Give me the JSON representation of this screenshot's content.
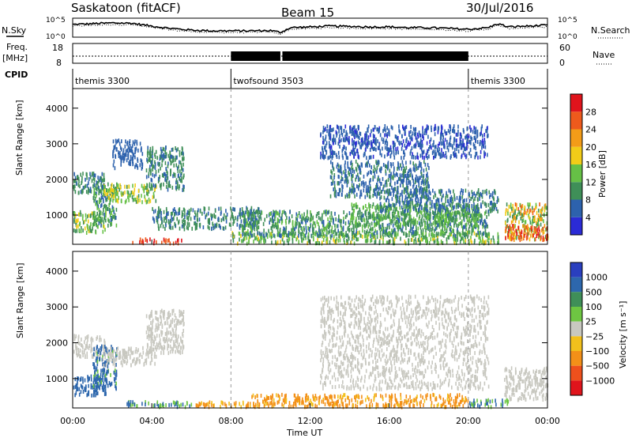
{
  "header": {
    "site": "Saskatoon (fitACF)",
    "beam": "Beam 15",
    "date": "30/Jul/2016"
  },
  "side_labels": {
    "nsky": "N.Sky",
    "freq_top": "Freq.",
    "freq_unit": "[MHz]",
    "cpid": "CPID",
    "nsearch": "N.Search",
    "nave": "Nave"
  },
  "top_scales": {
    "noise_left": [
      "10^5",
      "10^0"
    ],
    "noise_right": [
      "10^5",
      "10^0"
    ],
    "freq_left": [
      "18",
      "8"
    ],
    "nave_right": [
      "60",
      "0"
    ]
  },
  "cpid_segments": [
    {
      "start": 0,
      "end": 8.0,
      "label": "themis 3300"
    },
    {
      "start": 8.0,
      "end": 20.0,
      "label": "twofsound 3503"
    },
    {
      "start": 20.0,
      "end": 24.0,
      "label": "themis 3300"
    }
  ],
  "colors": {
    "power": [
      "#2b2bd6",
      "#2d62ad",
      "#3f8f58",
      "#66c046",
      "#f2cc18",
      "#f39c18",
      "#ee5a1c",
      "#e0141c"
    ],
    "velocity": [
      "#2a3fbf",
      "#2d67ad",
      "#3f8f58",
      "#6ec642",
      "#c8c8c0",
      "#f2c01c",
      "#f39018",
      "#ee501c",
      "#e0141c"
    ]
  },
  "chart_data": [
    {
      "type": "line",
      "name": "noise",
      "series": [
        {
          "name": "N.Sky"
        },
        {
          "name": "N.Search"
        }
      ],
      "x": [
        0,
        1,
        2,
        3,
        4,
        5,
        6,
        7,
        8,
        9,
        10,
        10.5,
        11,
        12,
        13,
        14,
        15,
        16,
        17,
        18,
        19,
        20,
        21,
        21.5,
        22,
        23,
        24
      ],
      "y": [
        0.7,
        0.75,
        0.8,
        0.78,
        0.6,
        0.45,
        0.35,
        0.3,
        0.3,
        0.3,
        0.32,
        0.2,
        0.5,
        0.55,
        0.6,
        0.58,
        0.55,
        0.55,
        0.5,
        0.5,
        0.45,
        0.4,
        0.5,
        0.75,
        0.55,
        0.6,
        0.65
      ]
    },
    {
      "type": "line",
      "name": "frequency-nave",
      "series": [
        {
          "name": "Freq."
        },
        {
          "name": "Nave"
        }
      ],
      "x": [
        0,
        8,
        8.01,
        10.5,
        20,
        20.01,
        24
      ],
      "freq": [
        10.5,
        10.5,
        10.5,
        10.5,
        10.5,
        10.5,
        10.5
      ],
      "nave_band": [
        [
          8.0,
          10.5
        ],
        [
          10.6,
          20.0
        ]
      ]
    },
    {
      "type": "heatmap",
      "name": "power",
      "xlabel": "",
      "ylabel": "Slant Range [km]",
      "xlim": [
        0,
        24
      ],
      "ylim": [
        180,
        4550
      ],
      "yticks": [
        1000,
        2000,
        3000,
        4000
      ],
      "colorbar": {
        "label": "Power [dB]",
        "ticks": [
          4,
          8,
          12,
          16,
          20,
          24,
          28
        ],
        "range": [
          0,
          32
        ]
      },
      "regions": [
        {
          "t": [
            0.0,
            1.6
          ],
          "r": [
            1600,
            2200
          ],
          "val": [
            6,
            12
          ]
        },
        {
          "t": [
            0.0,
            1.7
          ],
          "r": [
            500,
            1100
          ],
          "val": [
            8,
            18
          ]
        },
        {
          "t": [
            1.0,
            2.2
          ],
          "r": [
            700,
            1900
          ],
          "val": [
            6,
            14
          ]
        },
        {
          "t": [
            1.5,
            4.2
          ],
          "r": [
            1350,
            1850
          ],
          "val": [
            10,
            20
          ]
        },
        {
          "t": [
            3.7,
            5.6
          ],
          "r": [
            1700,
            2900
          ],
          "val": [
            6,
            12
          ]
        },
        {
          "t": [
            2.0,
            3.5
          ],
          "r": [
            2300,
            3100
          ],
          "val": [
            4,
            8
          ]
        },
        {
          "t": [
            4.0,
            9.5
          ],
          "r": [
            600,
            1200
          ],
          "val": [
            6,
            12
          ]
        },
        {
          "t": [
            3.0,
            5.5
          ],
          "r": [
            200,
            320
          ],
          "val": [
            26,
            30
          ]
        },
        {
          "t": [
            8.0,
            21.5
          ],
          "r": [
            200,
            500
          ],
          "val": [
            8,
            18
          ]
        },
        {
          "t": [
            8.5,
            21.0
          ],
          "r": [
            400,
            1100
          ],
          "val": [
            6,
            14
          ]
        },
        {
          "t": [
            14.0,
            20.5
          ],
          "r": [
            700,
            1300
          ],
          "val": [
            8,
            16
          ]
        },
        {
          "t": [
            13.0,
            18.0
          ],
          "r": [
            1500,
            2500
          ],
          "val": [
            4,
            10
          ]
        },
        {
          "t": [
            15.5,
            21.5
          ],
          "r": [
            1100,
            1700
          ],
          "val": [
            5,
            10
          ]
        },
        {
          "t": [
            12.5,
            21.0
          ],
          "r": [
            2600,
            3500
          ],
          "val": [
            3,
            7
          ]
        },
        {
          "t": [
            21.8,
            24.0
          ],
          "r": [
            300,
            1300
          ],
          "val": [
            10,
            26
          ]
        },
        {
          "t": [
            21.8,
            24.0
          ],
          "r": [
            300,
            700
          ],
          "val": [
            20,
            30
          ]
        }
      ]
    },
    {
      "type": "heatmap",
      "name": "velocity",
      "xlabel": "Time UT",
      "ylabel": "Slant Range [km]",
      "xlim": [
        0,
        24
      ],
      "ylim": [
        180,
        4550
      ],
      "xticks": [
        0,
        4,
        8,
        12,
        16,
        20,
        24
      ],
      "xticklabels": [
        "00:00",
        "04:00",
        "08:00",
        "12:00",
        "16:00",
        "20:00",
        "00:00"
      ],
      "yticks": [
        1000,
        2000,
        3000,
        4000
      ],
      "colorbar": {
        "label": "Velocity [m s⁻¹]",
        "ticks": [
          "1000",
          "500",
          "100",
          "25",
          "−25",
          "−100",
          "−500",
          "−1000"
        ]
      },
      "regions": [
        {
          "t": [
            0.0,
            1.6
          ],
          "r": [
            1600,
            2200
          ],
          "val": [
            0,
            0
          ]
        },
        {
          "t": [
            0.0,
            1.7
          ],
          "r": [
            500,
            1100
          ],
          "val": [
            100,
            400
          ]
        },
        {
          "t": [
            1.0,
            2.2
          ],
          "r": [
            700,
            1900
          ],
          "val": [
            50,
            300
          ]
        },
        {
          "t": [
            1.5,
            4.2
          ],
          "r": [
            1350,
            1850
          ],
          "val": [
            0,
            0
          ]
        },
        {
          "t": [
            3.7,
            5.6
          ],
          "r": [
            1700,
            2900
          ],
          "val": [
            0,
            0
          ]
        },
        {
          "t": [
            2.5,
            6.0
          ],
          "r": [
            200,
            350
          ],
          "val": [
            50,
            150
          ]
        },
        {
          "t": [
            6.0,
            9.0
          ],
          "r": [
            200,
            350
          ],
          "val": [
            -50,
            -200
          ]
        },
        {
          "t": [
            9.0,
            20.0
          ],
          "r": [
            200,
            550
          ],
          "val": [
            -50,
            -300
          ]
        },
        {
          "t": [
            20.0,
            22.0
          ],
          "r": [
            200,
            400
          ],
          "val": [
            50,
            150
          ]
        },
        {
          "t": [
            12.5,
            21.0
          ],
          "r": [
            700,
            3300
          ],
          "val": [
            0,
            0
          ]
        },
        {
          "t": [
            21.8,
            24.0
          ],
          "r": [
            400,
            1300
          ],
          "val": [
            0,
            0
          ]
        }
      ]
    }
  ]
}
